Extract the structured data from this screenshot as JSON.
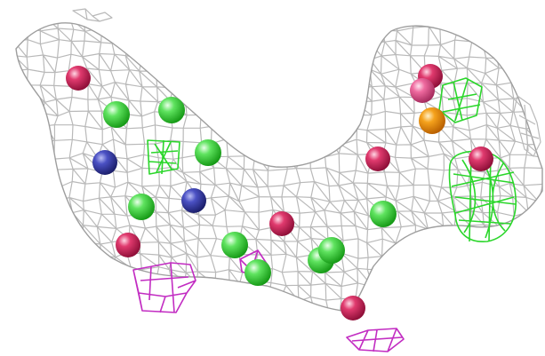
{
  "scene": {
    "background": "#ffffff",
    "mesh_color": "#b9b9b9",
    "sphere_colors": {
      "green": "#3ccf3c",
      "crimson": "#d1245a",
      "pink": "#e0508a",
      "blue": "#3a3fa6",
      "orange": "#f08a0c"
    },
    "feature_colors": {
      "green_cage": "#2bd62b",
      "magenta_cage": "#c22cc2"
    }
  }
}
